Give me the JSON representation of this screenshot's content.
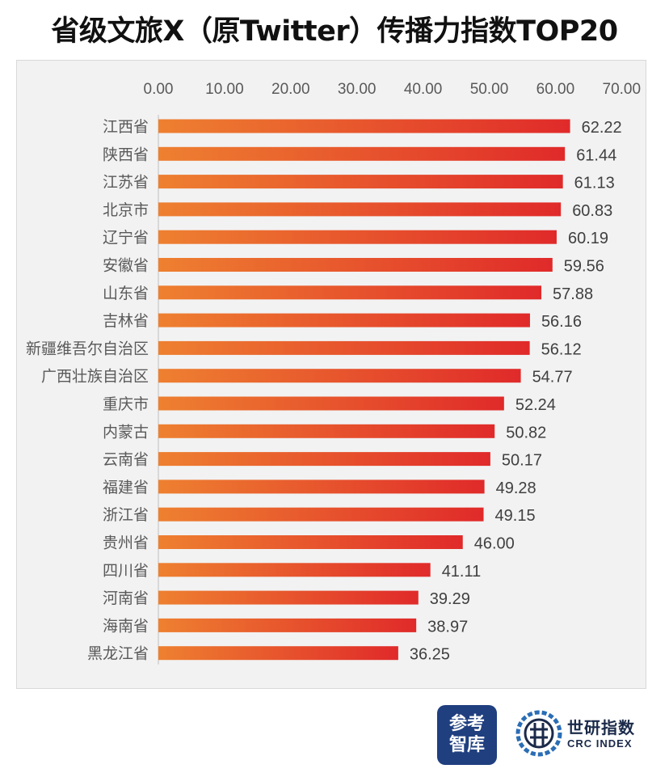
{
  "title": "省级文旅X（原Twitter）传播力指数TOP20",
  "logos": {
    "cankao_line1": "参考",
    "cankao_line2": "智库",
    "crc_cn": "世研指数",
    "crc_en": "CRC INDEX"
  },
  "colors": {
    "bar_start": "#ee8030",
    "bar_end": "#e02a2a",
    "frame_bg": "#f2f2f2",
    "axis_text": "#595959"
  },
  "chart_data": {
    "type": "bar",
    "orientation": "horizontal",
    "xlim": [
      0,
      70
    ],
    "x_ticks": [
      "0.00",
      "10.00",
      "20.00",
      "30.00",
      "40.00",
      "50.00",
      "60.00",
      "70.00"
    ],
    "x_axis_position": "top",
    "grid": false,
    "categories": [
      "江西省",
      "陕西省",
      "江苏省",
      "北京市",
      "辽宁省",
      "安徽省",
      "山东省",
      "吉林省",
      "新疆维吾尔自治区",
      "广西壮族自治区",
      "重庆市",
      "内蒙古",
      "云南省",
      "福建省",
      "浙江省",
      "贵州省",
      "四川省",
      "河南省",
      "海南省",
      "黑龙江省"
    ],
    "values": [
      62.22,
      61.44,
      61.13,
      60.83,
      60.19,
      59.56,
      57.88,
      56.16,
      56.12,
      54.77,
      52.24,
      50.82,
      50.17,
      49.28,
      49.15,
      46.0,
      41.11,
      39.29,
      38.97,
      36.25
    ],
    "value_labels": [
      "62.22",
      "61.44",
      "61.13",
      "60.83",
      "60.19",
      "59.56",
      "57.88",
      "56.16",
      "56.12",
      "54.77",
      "52.24",
      "50.82",
      "50.17",
      "49.28",
      "49.15",
      "46.00",
      "41.11",
      "39.29",
      "38.97",
      "36.25"
    ]
  }
}
